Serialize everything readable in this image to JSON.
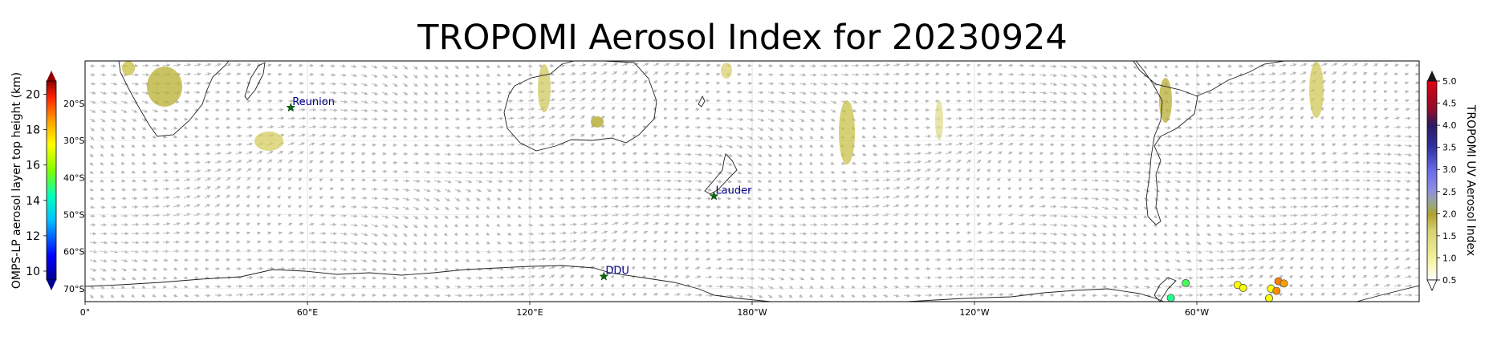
{
  "title": "TROPOMI Aerosol Index for 20230924",
  "map": {
    "lon_ticks": [
      "0°",
      "60°E",
      "120°E",
      "180°W",
      "120°W",
      "60°W"
    ],
    "lat_ticks": [
      "20°S",
      "30°S",
      "40°S",
      "50°S",
      "60°S",
      "70°S"
    ],
    "stations": [
      {
        "name": "Reunion",
        "lon": 55.5,
        "lat": -21.1
      },
      {
        "name": "Lauder",
        "lon": 169.7,
        "lat": -45.0
      },
      {
        "name": "DDU",
        "lon": 140.0,
        "lat": -66.7
      }
    ],
    "omps_points": [
      {
        "lon": 297,
        "lat": -68.5,
        "height_km": 15.0
      },
      {
        "lon": 293,
        "lat": -72.5,
        "height_km": 14.6
      },
      {
        "lon": 311,
        "lat": -69.0,
        "height_km": 17.2
      },
      {
        "lon": 312.5,
        "lat": -69.8,
        "height_km": 17.0
      },
      {
        "lon": 320,
        "lat": -70.0,
        "height_km": 17.1
      },
      {
        "lon": 322,
        "lat": -68.0,
        "height_km": 18.9
      },
      {
        "lon": 323.5,
        "lat": -68.6,
        "height_km": 18.5
      },
      {
        "lon": 321.5,
        "lat": -70.6,
        "height_km": 18.7
      },
      {
        "lon": 319.5,
        "lat": -72.6,
        "height_km": 17.0
      }
    ]
  },
  "colorbar_left": {
    "label": "OMPS-LP aerosol layer top height (km)",
    "ticks": [
      "10",
      "12",
      "14",
      "16",
      "18",
      "20"
    ]
  },
  "colorbar_right": {
    "label": "TROPOMI UV Aerosol Index",
    "ticks": [
      "0.5",
      "1.0",
      "1.5",
      "2.0",
      "2.5",
      "3.0",
      "3.5",
      "4.0",
      "4.5",
      "5.0"
    ]
  }
}
